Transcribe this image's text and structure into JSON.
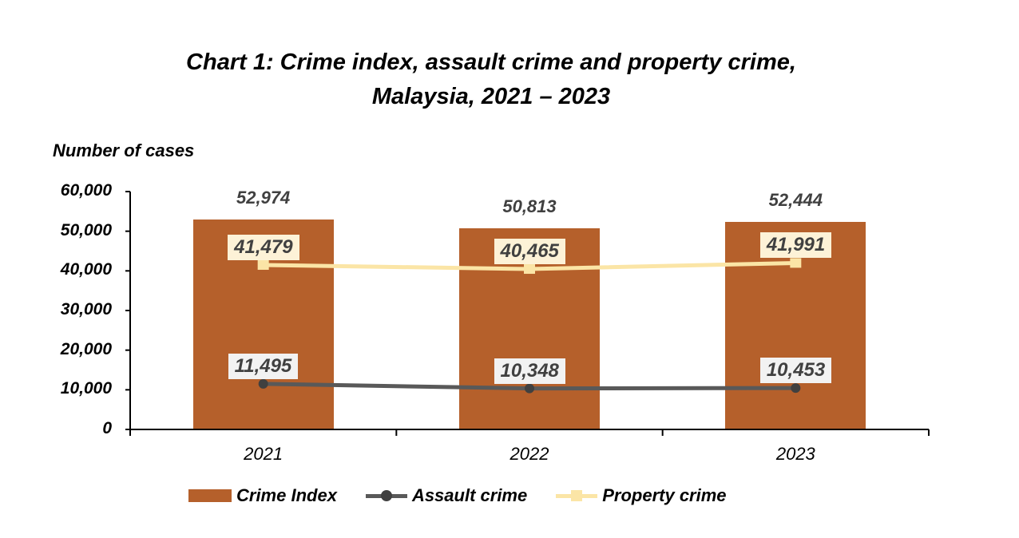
{
  "chart_data": {
    "type": "bar",
    "title": "Chart 1: Crime index, assault crime and property crime, Malaysia, 2021 – 2023",
    "title_lines": [
      "Chart 1: Crime index, assault crime and property crime,",
      "Malaysia, 2021 – 2023"
    ],
    "xlabel": "",
    "ylabel": "Number of cases",
    "ylim": [
      0,
      60000
    ],
    "y_ticks": [
      "0",
      "10,000",
      "20,000",
      "30,000",
      "40,000",
      "50,000",
      "60,000"
    ],
    "categories": [
      "2021",
      "2022",
      "2023"
    ],
    "grid": false,
    "legend_position": "bottom",
    "series": [
      {
        "name": "Crime Index",
        "kind": "bar",
        "color": "#b5602b",
        "values": [
          52974,
          50813,
          52444
        ],
        "labels": [
          "52,974",
          "50,813",
          "52,444"
        ]
      },
      {
        "name": "Assault crime",
        "kind": "line",
        "marker": "circle",
        "color": "#595959",
        "values": [
          11495,
          10348,
          10453
        ],
        "labels": [
          "11,495",
          "10,348",
          "10,453"
        ]
      },
      {
        "name": "Property crime",
        "kind": "line",
        "marker": "square",
        "color": "#fbe5a6",
        "values": [
          41479,
          40465,
          41991
        ],
        "labels": [
          "41,479",
          "40,465",
          "41,991"
        ]
      }
    ]
  },
  "legend": {
    "crime_index": "Crime Index",
    "assault": "Assault crime",
    "property": "Property crime"
  }
}
